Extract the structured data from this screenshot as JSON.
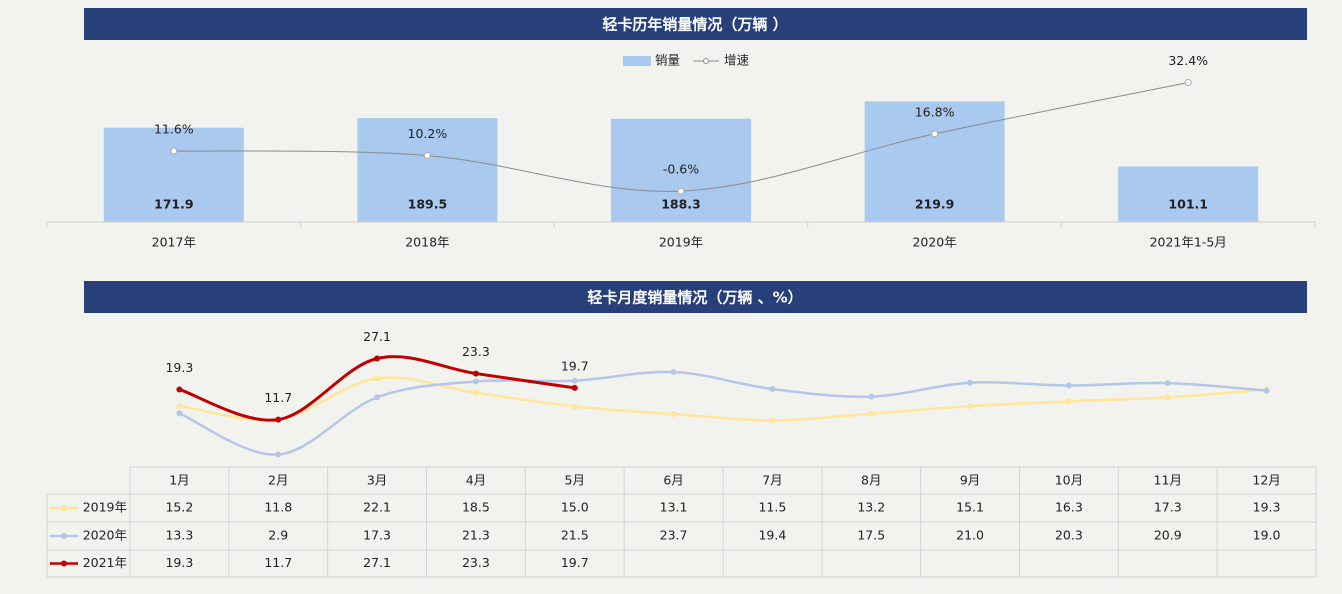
{
  "chart_data": [
    {
      "type": "bar",
      "title": "轻卡历年销量情况（万辆 ）",
      "categories": [
        "2017年",
        "2018年",
        "2019年",
        "2020年",
        "2021年1-5月"
      ],
      "series": [
        {
          "name": "销量",
          "type": "bar",
          "color": "#a9c9ee",
          "values": [
            171.9,
            189.5,
            188.3,
            219.9,
            101.1
          ]
        },
        {
          "name": "增速",
          "type": "line",
          "axis": "y2",
          "color": "#8c8c8c",
          "values": [
            11.6,
            10.2,
            -0.6,
            16.8,
            32.4
          ],
          "value_labels": [
            "11.6%",
            "10.2%",
            "-0.6%",
            "16.8%",
            "32.4%"
          ]
        }
      ],
      "ylim": [
        0,
        270
      ],
      "y2lim": [
        -10,
        35
      ],
      "legend": "top"
    },
    {
      "type": "line",
      "title": "轻卡月度销量情况（万辆 、%）",
      "categories": [
        "1月",
        "2月",
        "3月",
        "4月",
        "5月",
        "6月",
        "7月",
        "8月",
        "9月",
        "10月",
        "11月",
        "12月"
      ],
      "series": [
        {
          "name": "2019年",
          "color": "#ffe699",
          "values": [
            15.2,
            11.8,
            22.1,
            18.5,
            15.0,
            13.1,
            11.5,
            13.2,
            15.1,
            16.3,
            17.3,
            19.3
          ],
          "value_labels": [
            "15.2",
            "11.8",
            "22.1",
            "18.5",
            "15.0",
            "13.1",
            "11.5",
            "13.2",
            "15.1",
            "16.3",
            "17.3",
            "19.3"
          ]
        },
        {
          "name": "2020年",
          "color": "#b4c7e7",
          "values": [
            13.3,
            2.9,
            17.3,
            21.3,
            21.5,
            23.7,
            19.4,
            17.5,
            21.0,
            20.3,
            20.9,
            19.0
          ],
          "value_labels": [
            "13.3",
            "2.9",
            "17.3",
            "21.3",
            "21.5",
            "23.7",
            "19.4",
            "17.5",
            "21.0",
            "20.3",
            "20.9",
            "19.0"
          ]
        },
        {
          "name": "2021年",
          "color": "#c00000",
          "values": [
            19.3,
            11.7,
            27.1,
            23.3,
            19.7,
            null,
            null,
            null,
            null,
            null,
            null,
            null
          ],
          "value_labels": [
            "19.3",
            "11.7",
            "27.1",
            "23.3",
            "19.7",
            null,
            null,
            null,
            null,
            null,
            null,
            null
          ],
          "data_labels": true
        }
      ],
      "ylim": [
        0,
        30
      ],
      "data_table": true
    }
  ]
}
